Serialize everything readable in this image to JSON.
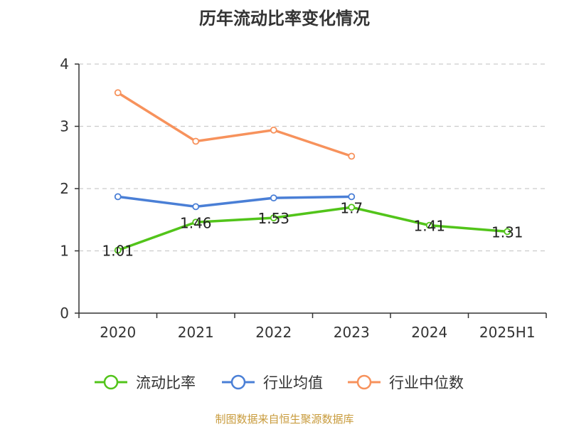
{
  "title": "历年流动比率变化情况",
  "source": "制图数据来自恒生聚源数据库",
  "chart_data": {
    "type": "line",
    "title": "历年流动比率变化情况",
    "categories": [
      "2020",
      "2021",
      "2022",
      "2023",
      "2024",
      "2025H1"
    ],
    "ylim": [
      0,
      4
    ],
    "yticks": [
      "0",
      "1",
      "2",
      "3",
      "4"
    ],
    "grid": true,
    "legend_position": "bottom",
    "series": [
      {
        "name": "流动比率",
        "color": "#52c41a",
        "values": [
          1.01,
          1.46,
          1.53,
          1.7,
          1.41,
          1.31
        ],
        "labels": [
          "1.01",
          "1.46",
          "1.53",
          "1.7",
          "1.41",
          "1.31"
        ]
      },
      {
        "name": "行业均值",
        "color": "#4a7fd6",
        "values": [
          1.87,
          1.71,
          1.85,
          1.87,
          null,
          null
        ]
      },
      {
        "name": "行业中位数",
        "color": "#f7925c",
        "values": [
          3.54,
          2.76,
          2.94,
          2.52,
          null,
          null
        ]
      }
    ]
  }
}
